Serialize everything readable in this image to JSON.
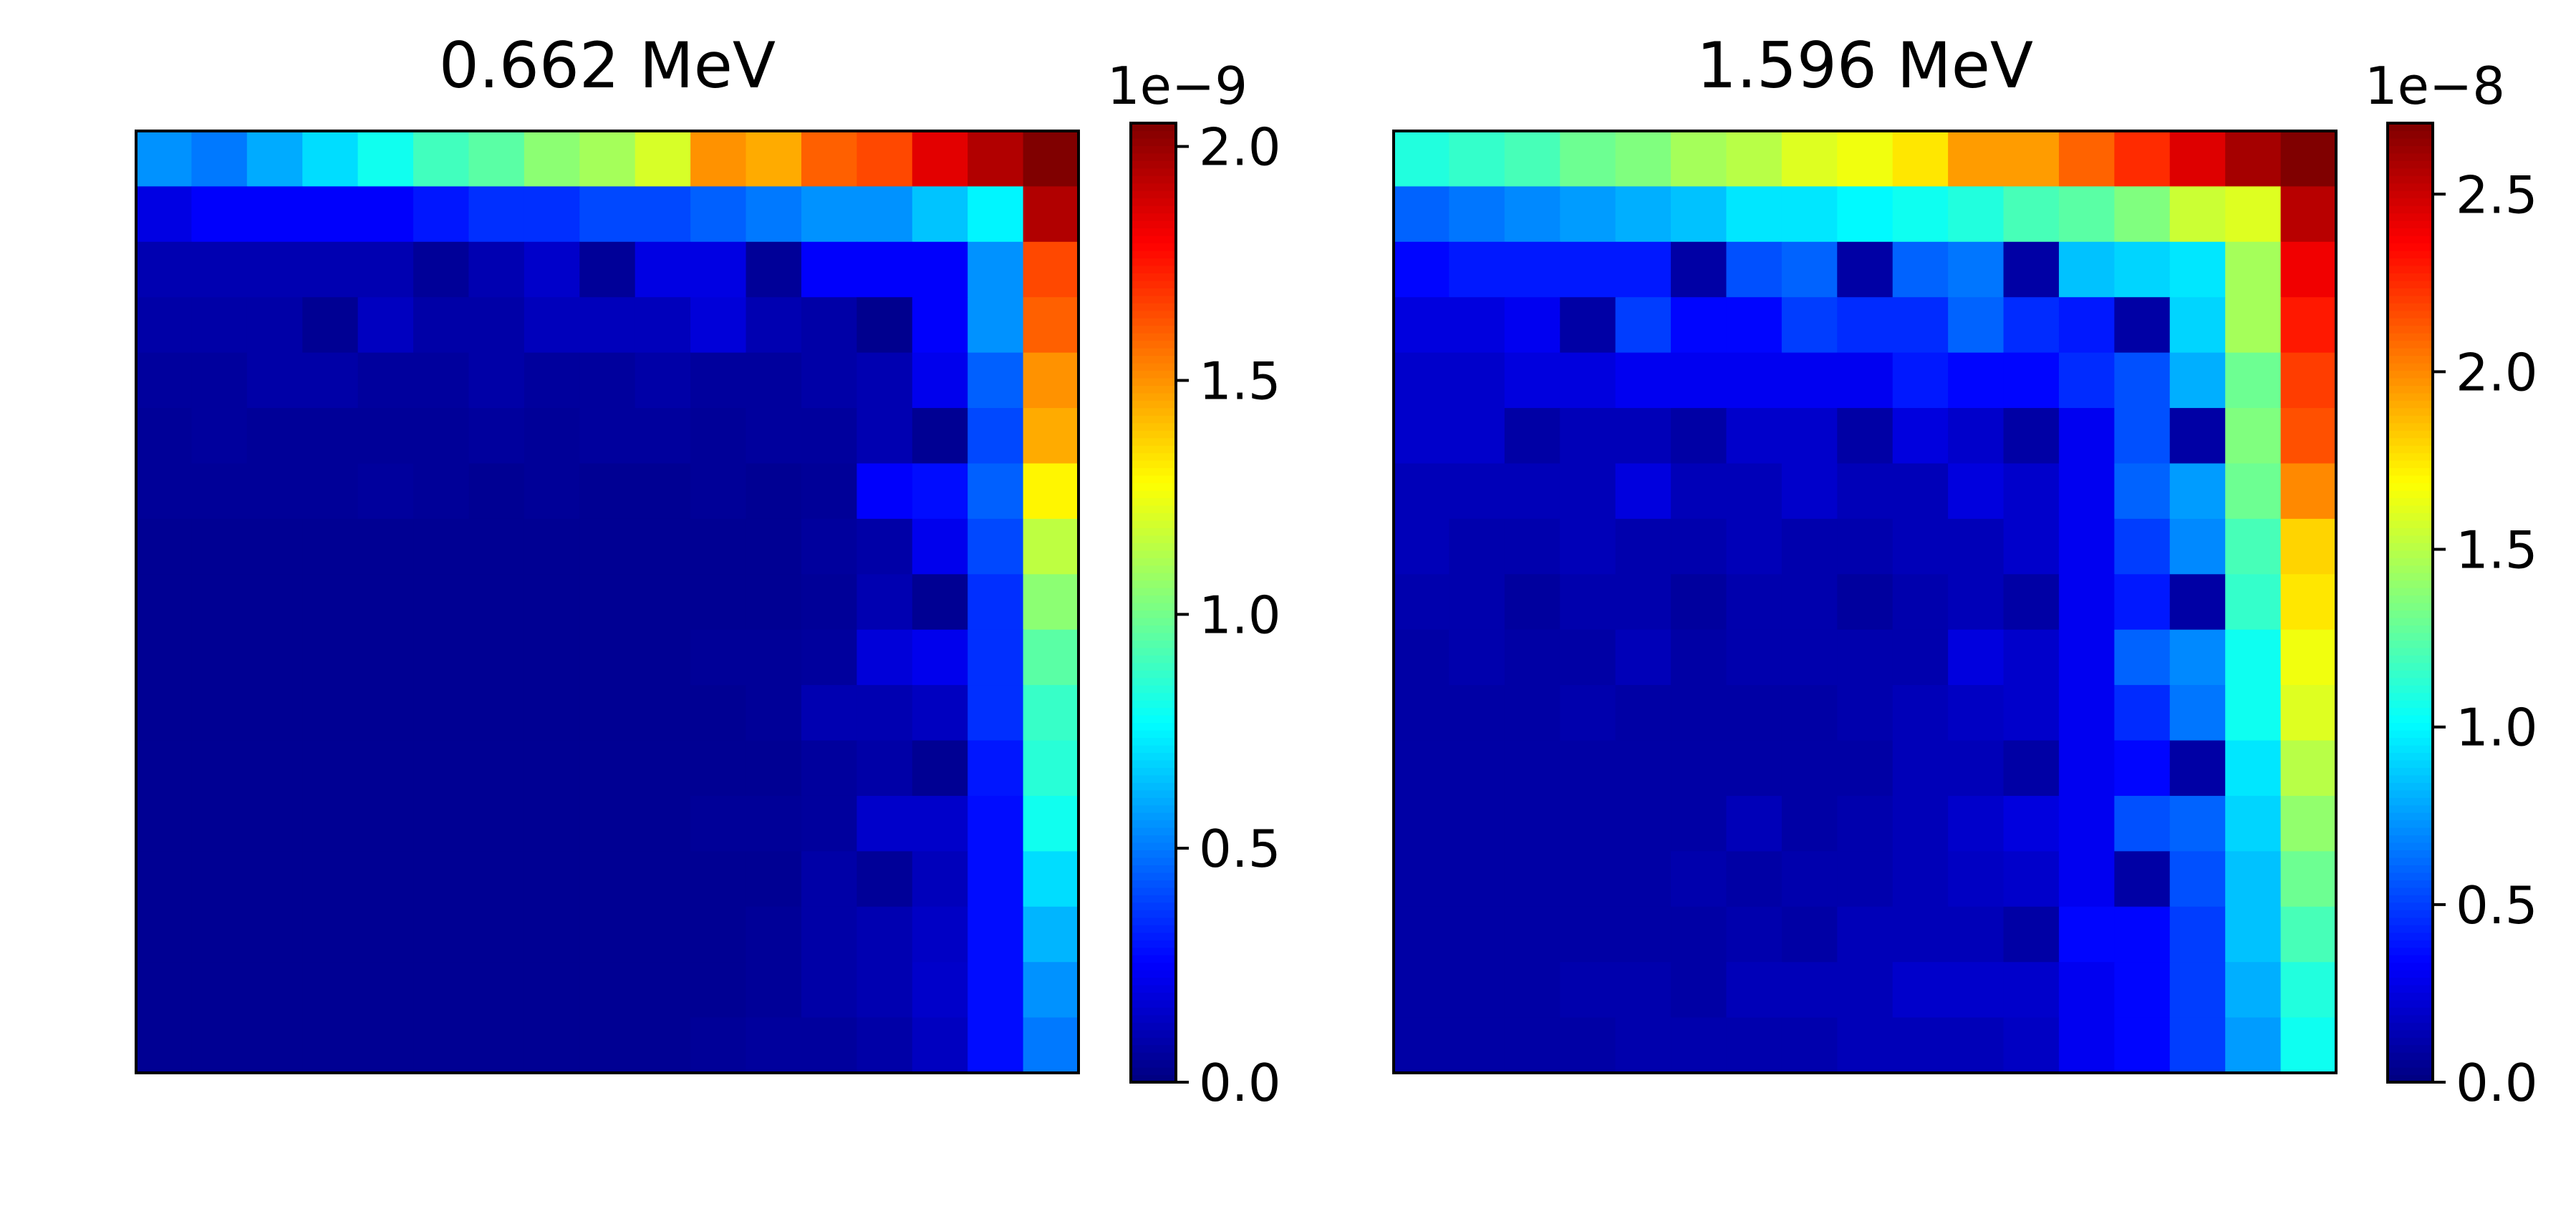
{
  "chart_data": [
    {
      "type": "heatmap",
      "title": "0.662 MeV",
      "colormap": "jet",
      "rows": 17,
      "cols": 17,
      "vmin": 0.0,
      "vmax": 2.05e-09,
      "colorbar": {
        "exponent_label": "1e−9",
        "ticks": [
          {
            "value": 0.0,
            "label": "0.0"
          },
          {
            "value": 5e-10,
            "label": "0.5"
          },
          {
            "value": 1e-09,
            "label": "1.0"
          },
          {
            "value": 1.5e-09,
            "label": "1.5"
          },
          {
            "value": 2e-09,
            "label": "2.0"
          }
        ]
      },
      "z": [
        [
          0.55,
          0.5,
          0.6,
          0.7,
          0.8,
          0.9,
          0.95,
          1.05,
          1.1,
          1.2,
          1.5,
          1.45,
          1.6,
          1.65,
          1.85,
          1.95,
          2.05
        ],
        [
          0.2,
          0.25,
          0.25,
          0.25,
          0.25,
          0.3,
          0.35,
          0.35,
          0.4,
          0.4,
          0.45,
          0.5,
          0.55,
          0.55,
          0.65,
          0.75,
          1.95
        ],
        [
          0.1,
          0.1,
          0.1,
          0.1,
          0.1,
          0.05,
          0.1,
          0.15,
          0.05,
          0.2,
          0.2,
          0.05,
          0.25,
          0.25,
          0.25,
          0.55,
          1.65
        ],
        [
          0.08,
          0.08,
          0.08,
          0.04,
          0.13,
          0.08,
          0.08,
          0.12,
          0.12,
          0.12,
          0.18,
          0.1,
          0.08,
          0.03,
          0.25,
          0.55,
          1.6
        ],
        [
          0.06,
          0.06,
          0.08,
          0.08,
          0.06,
          0.06,
          0.08,
          0.06,
          0.06,
          0.08,
          0.06,
          0.06,
          0.08,
          0.1,
          0.22,
          0.45,
          1.5
        ],
        [
          0.05,
          0.06,
          0.05,
          0.05,
          0.05,
          0.05,
          0.06,
          0.05,
          0.06,
          0.06,
          0.05,
          0.06,
          0.06,
          0.1,
          0.04,
          0.4,
          1.45
        ],
        [
          0.05,
          0.05,
          0.05,
          0.05,
          0.06,
          0.05,
          0.04,
          0.05,
          0.04,
          0.04,
          0.05,
          0.04,
          0.05,
          0.25,
          0.28,
          0.45,
          1.3
        ],
        [
          0.04,
          0.04,
          0.04,
          0.04,
          0.04,
          0.04,
          0.04,
          0.04,
          0.04,
          0.04,
          0.04,
          0.04,
          0.06,
          0.08,
          0.22,
          0.4,
          1.15
        ],
        [
          0.04,
          0.04,
          0.04,
          0.04,
          0.04,
          0.04,
          0.04,
          0.04,
          0.04,
          0.04,
          0.04,
          0.04,
          0.05,
          0.1,
          0.04,
          0.35,
          1.05
        ],
        [
          0.04,
          0.04,
          0.04,
          0.04,
          0.04,
          0.04,
          0.04,
          0.04,
          0.04,
          0.04,
          0.05,
          0.05,
          0.06,
          0.18,
          0.22,
          0.35,
          0.95
        ],
        [
          0.04,
          0.04,
          0.04,
          0.04,
          0.04,
          0.04,
          0.04,
          0.04,
          0.04,
          0.04,
          0.04,
          0.05,
          0.1,
          0.1,
          0.13,
          0.35,
          0.88
        ],
        [
          0.04,
          0.04,
          0.04,
          0.04,
          0.04,
          0.04,
          0.04,
          0.04,
          0.04,
          0.04,
          0.04,
          0.04,
          0.06,
          0.08,
          0.04,
          0.3,
          0.85
        ],
        [
          0.04,
          0.04,
          0.04,
          0.04,
          0.04,
          0.04,
          0.04,
          0.04,
          0.04,
          0.04,
          0.05,
          0.05,
          0.06,
          0.15,
          0.15,
          0.28,
          0.8
        ],
        [
          0.04,
          0.04,
          0.04,
          0.04,
          0.04,
          0.04,
          0.04,
          0.04,
          0.04,
          0.04,
          0.04,
          0.04,
          0.08,
          0.05,
          0.12,
          0.28,
          0.7
        ],
        [
          0.04,
          0.04,
          0.04,
          0.04,
          0.04,
          0.04,
          0.04,
          0.04,
          0.04,
          0.04,
          0.04,
          0.05,
          0.08,
          0.1,
          0.14,
          0.28,
          0.62
        ],
        [
          0.04,
          0.04,
          0.04,
          0.04,
          0.04,
          0.04,
          0.04,
          0.04,
          0.04,
          0.04,
          0.04,
          0.05,
          0.08,
          0.1,
          0.15,
          0.28,
          0.55
        ],
        [
          0.04,
          0.04,
          0.04,
          0.04,
          0.04,
          0.04,
          0.04,
          0.04,
          0.04,
          0.04,
          0.05,
          0.06,
          0.06,
          0.08,
          0.13,
          0.28,
          0.5
        ]
      ],
      "z_scale": 1e-09
    },
    {
      "type": "heatmap",
      "title": "1.596 MeV",
      "colormap": "jet",
      "rows": 17,
      "cols": 17,
      "vmin": 0.0,
      "vmax": 2.7e-08,
      "colorbar": {
        "exponent_label": "1e−8",
        "ticks": [
          {
            "value": 0.0,
            "label": "0.0"
          },
          {
            "value": 5e-09,
            "label": "0.5"
          },
          {
            "value": 1e-08,
            "label": "1.0"
          },
          {
            "value": 1.5e-08,
            "label": "1.5"
          },
          {
            "value": 2e-08,
            "label": "2.0"
          },
          {
            "value": 2.5e-08,
            "label": "2.5"
          }
        ]
      },
      "z": [
        [
          1.1,
          1.15,
          1.2,
          1.3,
          1.35,
          1.45,
          1.5,
          1.6,
          1.65,
          1.75,
          1.95,
          1.95,
          2.1,
          2.25,
          2.45,
          2.6,
          2.7
        ],
        [
          0.6,
          0.65,
          0.7,
          0.75,
          0.8,
          0.85,
          0.95,
          0.95,
          1.0,
          1.05,
          1.1,
          1.2,
          1.25,
          1.35,
          1.55,
          1.6,
          2.55
        ],
        [
          0.35,
          0.4,
          0.4,
          0.4,
          0.4,
          0.1,
          0.55,
          0.6,
          0.1,
          0.6,
          0.65,
          0.1,
          0.85,
          0.9,
          0.95,
          1.45,
          2.4
        ],
        [
          0.25,
          0.25,
          0.3,
          0.1,
          0.5,
          0.35,
          0.35,
          0.5,
          0.45,
          0.45,
          0.6,
          0.45,
          0.4,
          0.1,
          0.9,
          1.45,
          2.3
        ],
        [
          0.2,
          0.2,
          0.25,
          0.25,
          0.3,
          0.3,
          0.3,
          0.3,
          0.3,
          0.4,
          0.35,
          0.35,
          0.45,
          0.55,
          0.8,
          1.3,
          2.2
        ],
        [
          0.2,
          0.2,
          0.1,
          0.15,
          0.15,
          0.1,
          0.2,
          0.2,
          0.1,
          0.25,
          0.2,
          0.1,
          0.3,
          0.55,
          0.1,
          1.35,
          2.15
        ],
        [
          0.15,
          0.15,
          0.15,
          0.15,
          0.25,
          0.15,
          0.15,
          0.2,
          0.15,
          0.15,
          0.25,
          0.2,
          0.3,
          0.6,
          0.75,
          1.3,
          2.0
        ],
        [
          0.15,
          0.12,
          0.12,
          0.15,
          0.12,
          0.12,
          0.15,
          0.12,
          0.12,
          0.15,
          0.15,
          0.2,
          0.3,
          0.5,
          0.7,
          1.2,
          1.8
        ],
        [
          0.12,
          0.12,
          0.08,
          0.12,
          0.12,
          0.08,
          0.12,
          0.12,
          0.08,
          0.12,
          0.15,
          0.1,
          0.3,
          0.4,
          0.1,
          1.15,
          1.75
        ],
        [
          0.1,
          0.12,
          0.1,
          0.1,
          0.15,
          0.1,
          0.12,
          0.12,
          0.12,
          0.12,
          0.25,
          0.2,
          0.3,
          0.6,
          0.7,
          1.05,
          1.65
        ],
        [
          0.1,
          0.1,
          0.1,
          0.12,
          0.1,
          0.1,
          0.1,
          0.1,
          0.12,
          0.15,
          0.18,
          0.2,
          0.3,
          0.45,
          0.65,
          1.05,
          1.6
        ],
        [
          0.1,
          0.1,
          0.1,
          0.1,
          0.1,
          0.1,
          0.1,
          0.1,
          0.1,
          0.15,
          0.15,
          0.1,
          0.3,
          0.35,
          0.1,
          0.95,
          1.5
        ],
        [
          0.1,
          0.1,
          0.1,
          0.1,
          0.1,
          0.1,
          0.15,
          0.1,
          0.12,
          0.15,
          0.2,
          0.25,
          0.3,
          0.55,
          0.6,
          0.9,
          1.4
        ],
        [
          0.1,
          0.1,
          0.1,
          0.1,
          0.1,
          0.12,
          0.1,
          0.12,
          0.12,
          0.15,
          0.18,
          0.2,
          0.3,
          0.1,
          0.55,
          0.85,
          1.3
        ],
        [
          0.1,
          0.1,
          0.1,
          0.1,
          0.1,
          0.1,
          0.12,
          0.1,
          0.15,
          0.15,
          0.15,
          0.1,
          0.35,
          0.35,
          0.5,
          0.85,
          1.2
        ],
        [
          0.1,
          0.1,
          0.1,
          0.12,
          0.12,
          0.1,
          0.15,
          0.15,
          0.15,
          0.2,
          0.2,
          0.2,
          0.3,
          0.35,
          0.5,
          0.8,
          1.1
        ],
        [
          0.1,
          0.1,
          0.1,
          0.1,
          0.12,
          0.12,
          0.12,
          0.12,
          0.15,
          0.15,
          0.15,
          0.18,
          0.3,
          0.35,
          0.5,
          0.75,
          1.05
        ]
      ],
      "z_scale": 1e-08
    }
  ]
}
